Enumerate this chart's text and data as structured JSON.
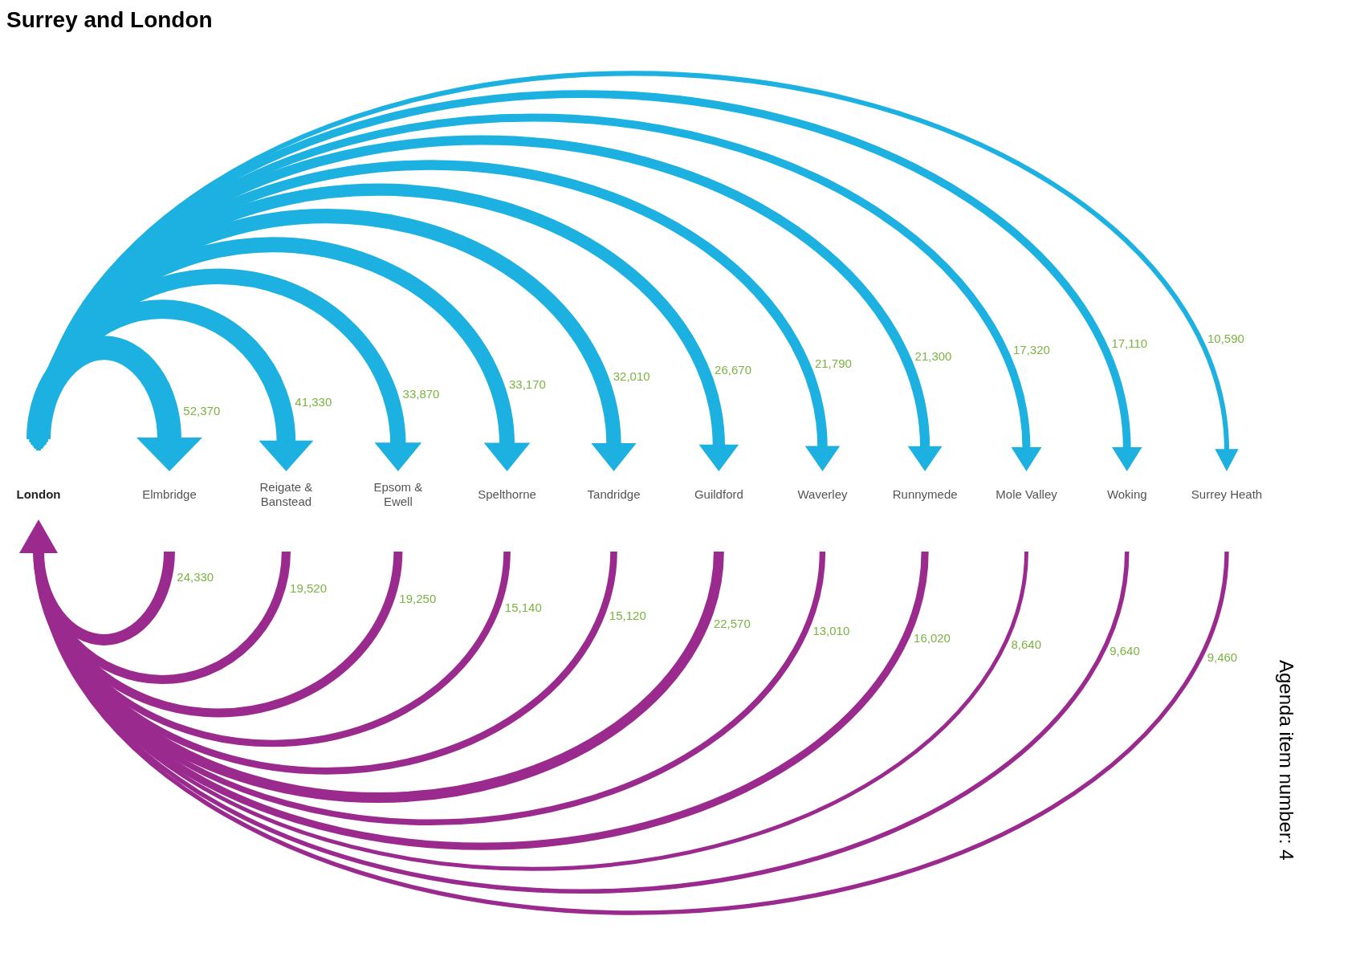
{
  "chart_data": {
    "type": "other",
    "title": "Surrey and London",
    "categories": [
      "London",
      "Elmbridge",
      "Reigate & Banstead",
      "Epsom & Ewell",
      "Spelthorne",
      "Tandridge",
      "Guildford",
      "Waverley",
      "Runnymede",
      "Mole Valley",
      "Woking",
      "Surrey Heath"
    ],
    "series": [
      {
        "color": "#1cb1e0",
        "values": [
          null,
          52370,
          41330,
          33870,
          33170,
          32010,
          26670,
          21790,
          21300,
          17320,
          17110,
          10590
        ],
        "value_labels": [
          null,
          "52,370",
          "41,330",
          "33,870",
          "33,170",
          "32,010",
          "26,670",
          "21,790",
          "21,300",
          "17,320",
          "17,110",
          "10,590"
        ]
      },
      {
        "color": "#9b2a8f",
        "values": [
          null,
          24330,
          19520,
          19250,
          15140,
          15120,
          22570,
          13010,
          16020,
          8640,
          9640,
          9460
        ],
        "value_labels": [
          null,
          "24,330",
          "19,520",
          "19,250",
          "15,140",
          "15,120",
          "22,570",
          "13,010",
          "16,020",
          "8,640",
          "9,640",
          "9,460"
        ]
      }
    ],
    "annotations": [
      "Agenda item number: 4"
    ]
  }
}
